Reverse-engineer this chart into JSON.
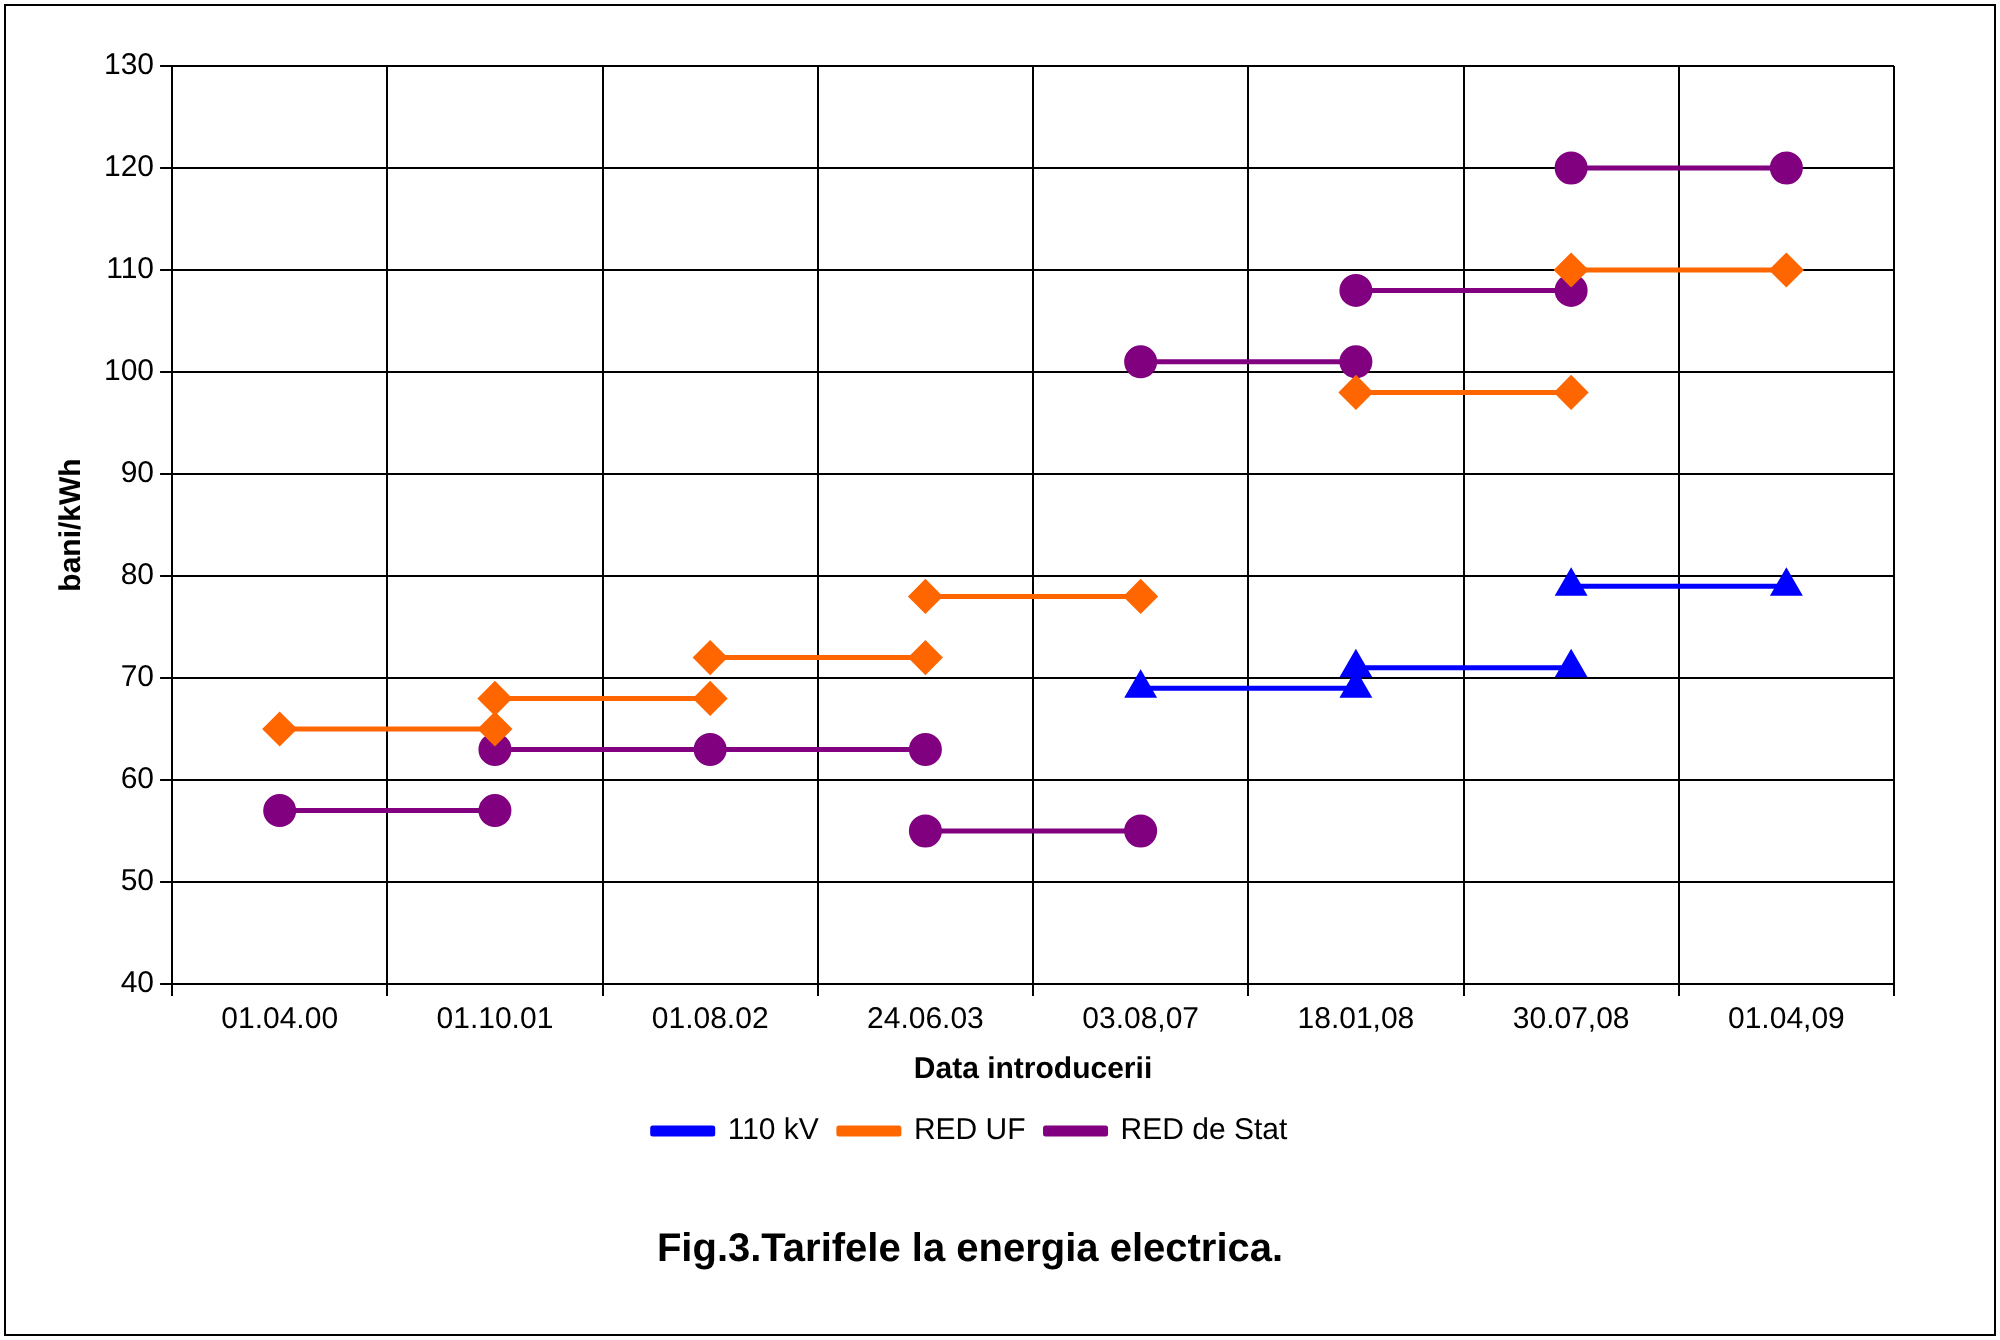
{
  "chart_data": {
    "type": "line",
    "title": "Fig.3.Tarifele la energia electrica.",
    "xlabel": "Data introducerii",
    "ylabel": "bani/kWh",
    "categories": [
      "01.04.00",
      "01.10.01",
      "01.08.02",
      "24.06.03",
      "03.08,07",
      "18.01,08",
      "30.07,08",
      "01.04,09"
    ],
    "ylim": [
      40,
      130
    ],
    "yticks": [
      40,
      50,
      60,
      70,
      80,
      90,
      100,
      110,
      120,
      130
    ],
    "grid": true,
    "legend": "bottom",
    "line_style": "solid",
    "series": [
      {
        "name": "110 kV",
        "color": "#0000ff",
        "marker": "triangle",
        "x": [
          "03.08,07",
          "18.01,08",
          "18.01,08",
          "18.01,08",
          "30.07,08",
          "30.07,08",
          "30.07,08",
          "01.04,09"
        ],
        "values": [
          69,
          69,
          null,
          71,
          71,
          null,
          79,
          79
        ]
      },
      {
        "name": "RED UF",
        "color": "#ff6600",
        "marker": "diamond",
        "x": [
          "01.04.00",
          "01.10.01",
          "01.10.01",
          "01.10.01",
          "01.08.02",
          "01.08.02",
          "01.08.02",
          "24.06.03",
          "24.06.03",
          "24.06.03",
          "03.08,07",
          "03.08,07",
          "18.01,08",
          "30.07,08",
          "30.07,08",
          "30.07,08",
          "01.04,09"
        ],
        "values": [
          65,
          65,
          null,
          68,
          68,
          null,
          72,
          72,
          null,
          78,
          78,
          null,
          98,
          98,
          null,
          110,
          110
        ]
      },
      {
        "name": "RED de Stat",
        "color": "#800080",
        "marker": "circle",
        "x": [
          "01.04.00",
          "01.10.01",
          "01.10.01",
          "01.10.01",
          "01.08.02",
          "24.06.03",
          "24.06.03",
          "24.06.03",
          "03.08,07",
          "03.08,07",
          "03.08,07",
          "18.01,08",
          "18.01,08",
          "18.01,08",
          "30.07,08",
          "30.07,08",
          "30.07,08",
          "01.04,09"
        ],
        "values": [
          57,
          57,
          null,
          63,
          63,
          63,
          null,
          55,
          55,
          null,
          101,
          101,
          null,
          108,
          108,
          null,
          120,
          120
        ]
      }
    ]
  }
}
